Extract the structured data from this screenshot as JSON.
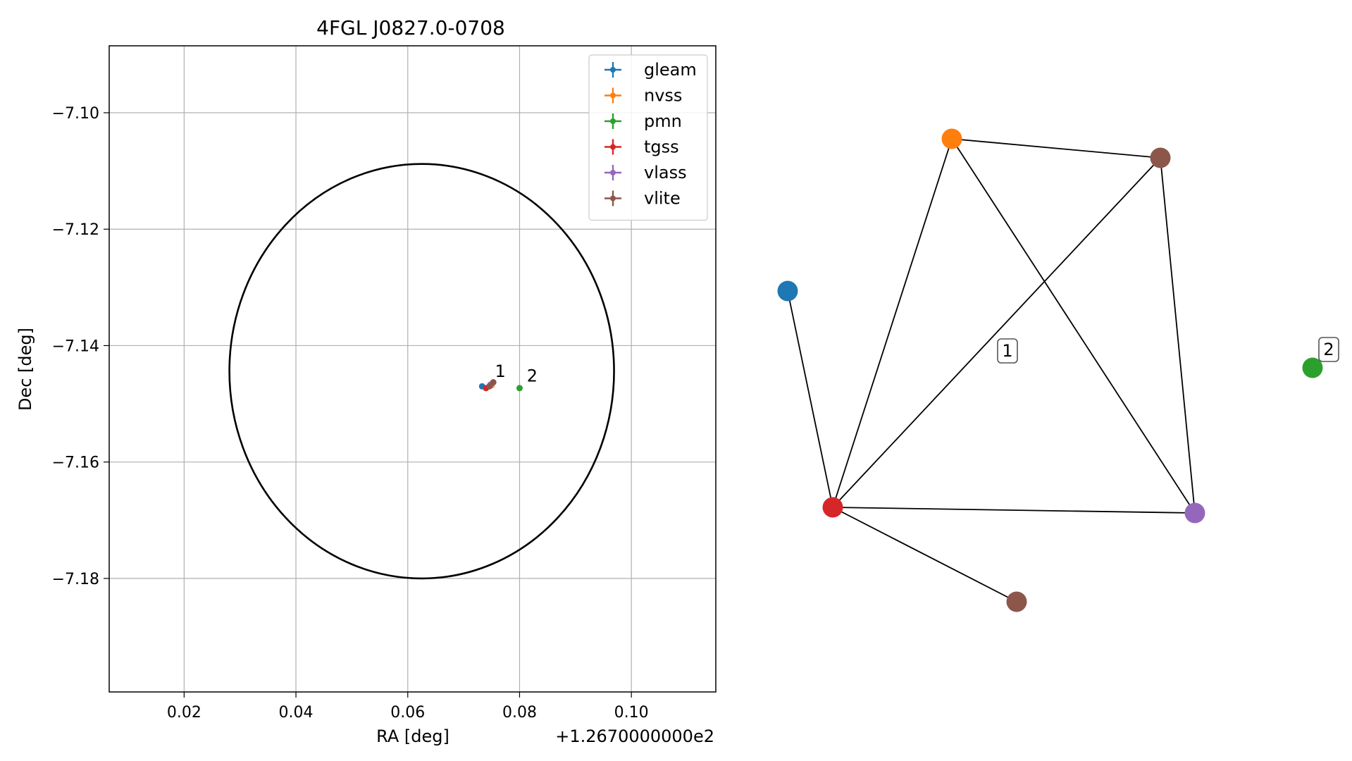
{
  "chart_data": [
    {
      "type": "scatter",
      "title": "4FGL J0827.0-0708",
      "xlabel": "RA [deg]",
      "ylabel": "Dec [deg]",
      "x_offset_label": "+1.2670000000e2",
      "xlim": [
        0.0066,
        0.1151
      ],
      "ylim": [
        -7.1995,
        -7.0885
      ],
      "xticks": [
        0.02,
        0.04,
        0.06,
        0.08,
        0.1
      ],
      "xtick_labels": [
        "0.02",
        "0.04",
        "0.06",
        "0.08",
        "0.10"
      ],
      "yticks": [
        -7.1,
        -7.12,
        -7.14,
        -7.16,
        -7.18
      ],
      "ytick_labels": [
        "−7.10",
        "−7.12",
        "−7.14",
        "−7.16",
        "−7.18"
      ],
      "grid": true,
      "legend_position": "top-right",
      "series": [
        {
          "name": "gleam",
          "color": "#1f77b4",
          "points": [
            {
              "x": 0.0733,
              "y": -7.147
            }
          ]
        },
        {
          "name": "nvss",
          "color": "#ff7f0e",
          "points": [
            {
              "x": 0.075,
              "y": -7.1468
            }
          ]
        },
        {
          "name": "pmn",
          "color": "#2ca02c",
          "points": [
            {
              "x": 0.08,
              "y": -7.1473
            }
          ]
        },
        {
          "name": "tgss",
          "color": "#d62728",
          "points": [
            {
              "x": 0.074,
              "y": -7.1473
            }
          ]
        },
        {
          "name": "vlass",
          "color": "#9467bd",
          "points": [
            {
              "x": 0.0748,
              "y": -7.1467
            }
          ]
        },
        {
          "name": "vlite",
          "color": "#8c564b",
          "points": [
            {
              "x": 0.0753,
              "y": -7.1463
            },
            {
              "x": 0.0746,
              "y": -7.147
            }
          ]
        }
      ],
      "ellipse": {
        "color": "#000000",
        "center": [
          0.0625,
          -7.1444
        ],
        "half_width_ra": 0.0344,
        "half_height_dec": 0.0356
      },
      "annotations": [
        {
          "text": "1",
          "x": 0.0756,
          "y": -7.1454
        },
        {
          "text": "2",
          "x": 0.0813,
          "y": -7.1462
        }
      ]
    },
    {
      "type": "graph",
      "nodes": [
        {
          "id": "gleam",
          "color": "#1f77b4"
        },
        {
          "id": "nvss",
          "color": "#ff7f0e"
        },
        {
          "id": "vlite_a",
          "color": "#8c564b"
        },
        {
          "id": "tgss",
          "color": "#d62728"
        },
        {
          "id": "vlass",
          "color": "#9467bd"
        },
        {
          "id": "vlite_b",
          "color": "#8c564b"
        },
        {
          "id": "pmn",
          "color": "#2ca02c"
        }
      ],
      "edges": [
        [
          "gleam",
          "tgss"
        ],
        [
          "nvss",
          "tgss"
        ],
        [
          "nvss",
          "vlite_a"
        ],
        [
          "nvss",
          "vlass"
        ],
        [
          "vlite_a",
          "tgss"
        ],
        [
          "vlite_a",
          "vlass"
        ],
        [
          "tgss",
          "vlass"
        ],
        [
          "tgss",
          "vlite_b"
        ]
      ],
      "labels": [
        {
          "text": "1"
        },
        {
          "text": "2"
        }
      ]
    }
  ]
}
